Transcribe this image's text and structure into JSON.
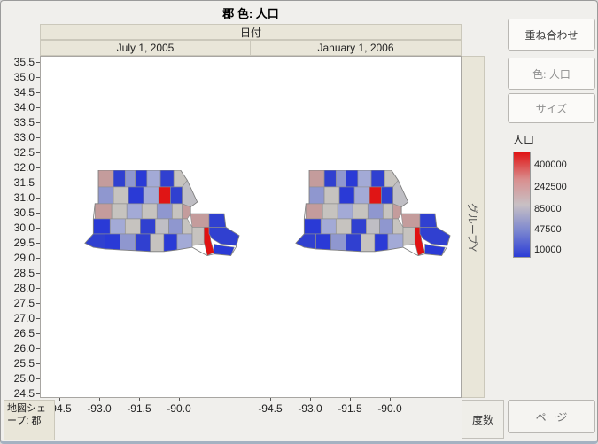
{
  "window": {
    "title": "郡 色: 人口"
  },
  "facet_header": {
    "label": "日付",
    "panels": [
      {
        "label": "July 1, 2005"
      },
      {
        "label": "January 1, 2006"
      }
    ]
  },
  "y_axis": {
    "ticks": [
      "35.5",
      "35.0",
      "34.5",
      "34.0",
      "33.5",
      "33.0",
      "32.5",
      "32.0",
      "31.5",
      "31.0",
      "30.5",
      "30.0",
      "29.5",
      "29.0",
      "28.5",
      "28.0",
      "27.5",
      "27.0",
      "26.5",
      "26.0",
      "25.5",
      "25.0",
      "24.5"
    ]
  },
  "x_axis": {
    "ticks": [
      "-94.5",
      "-93.0",
      "-91.5",
      "-90.0"
    ]
  },
  "group_y_strip": {
    "label": "グループY"
  },
  "sidebar": {
    "overlay_label": "重ね合わせ",
    "color_label": "色: 人口",
    "size_label": "サイズ"
  },
  "legend": {
    "title": "人口",
    "ticks": [
      "400000",
      "242500",
      "85000",
      "47500",
      "10000"
    ],
    "colors": {
      "high": "#e01414",
      "mid": "#c8c0c4",
      "low": "#2b3cd6"
    }
  },
  "bottom_bar": {
    "map_shape_label": "地図シェープ: 郡",
    "freq_label": "度数",
    "page_label": "ページ"
  },
  "chart_data": {
    "type": "heatmap",
    "subtype": "choropleth_map",
    "title": "郡 色: 人口",
    "map_shape": "郡 (Louisiana parishes)",
    "facet": {
      "variable": "日付",
      "levels": [
        "July 1, 2005",
        "January 1, 2006"
      ]
    },
    "color": {
      "variable": "人口",
      "scale_ticks": [
        400000,
        242500,
        85000,
        47500,
        10000
      ],
      "low_color": "#2b3cd6",
      "mid_color": "#c8c0c4",
      "high_color": "#e01414"
    },
    "x": {
      "label_ticks": [
        -94.5,
        -93.0,
        -91.5,
        -90.0
      ]
    },
    "y": {
      "label_ticks": [
        35.5,
        35.0,
        34.5,
        34.0,
        33.5,
        33.0,
        32.5,
        32.0,
        31.5,
        31.0,
        30.5,
        30.0,
        29.5,
        29.0,
        28.5,
        28.0,
        27.5,
        27.0,
        26.5,
        26.0,
        25.5,
        25.0,
        24.5
      ]
    },
    "notes": "Two identical Louisiana parish choropleth maps colored by population (red = high ~400000, blue = low ~10000); individual parish values are not labeled in the image."
  }
}
